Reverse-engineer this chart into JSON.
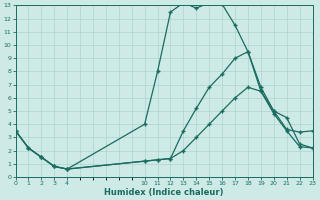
{
  "xlabel": "Humidex (Indice chaleur)",
  "background_color": "#ceeae6",
  "grid_color": "#aed4d0",
  "line_color": "#1a6b60",
  "xlim": [
    0,
    23
  ],
  "ylim": [
    0,
    13
  ],
  "xtick_positions": [
    0,
    1,
    2,
    3,
    4,
    10,
    11,
    12,
    13,
    14,
    15,
    16,
    17,
    18,
    19,
    20,
    21,
    22,
    23
  ],
  "xtick_labels": [
    "0",
    "1",
    "2",
    "3",
    "4",
    "10",
    "11",
    "12",
    "13",
    "14",
    "15",
    "16",
    "17",
    "18",
    "19",
    "20",
    "21",
    "22",
    "23"
  ],
  "ytick_positions": [
    0,
    1,
    2,
    3,
    4,
    5,
    6,
    7,
    8,
    9,
    10,
    11,
    12,
    13
  ],
  "ytick_labels": [
    "0",
    "1",
    "2",
    "3",
    "4",
    "5",
    "6",
    "7",
    "8",
    "9",
    "10",
    "11",
    "12",
    "13"
  ],
  "line1_x": [
    0,
    1,
    2,
    3,
    4,
    10,
    11,
    12,
    13,
    14,
    15,
    16,
    17,
    18,
    19,
    20,
    21,
    22,
    23
  ],
  "line1_y": [
    3.5,
    2.2,
    1.5,
    0.8,
    0.6,
    4.0,
    8.0,
    12.5,
    13.2,
    12.8,
    13.2,
    13.1,
    11.5,
    9.5,
    6.5,
    4.8,
    3.5,
    2.3,
    2.2
  ],
  "line2_x": [
    0,
    1,
    2,
    3,
    4,
    10,
    11,
    12,
    13,
    14,
    15,
    16,
    17,
    18,
    19,
    20,
    21,
    22,
    23
  ],
  "line2_y": [
    3.5,
    2.2,
    1.5,
    0.8,
    0.6,
    1.2,
    1.3,
    1.4,
    3.5,
    5.2,
    6.8,
    7.8,
    9.0,
    9.5,
    6.8,
    5.0,
    3.6,
    3.4,
    3.5
  ],
  "line3_x": [
    0,
    1,
    2,
    3,
    4,
    10,
    11,
    12,
    13,
    14,
    15,
    16,
    17,
    18,
    19,
    20,
    21,
    22,
    23
  ],
  "line3_y": [
    3.5,
    2.2,
    1.5,
    0.8,
    0.6,
    1.2,
    1.3,
    1.4,
    2.0,
    3.0,
    4.0,
    5.0,
    6.0,
    6.8,
    6.5,
    5.0,
    4.5,
    2.5,
    2.2
  ]
}
